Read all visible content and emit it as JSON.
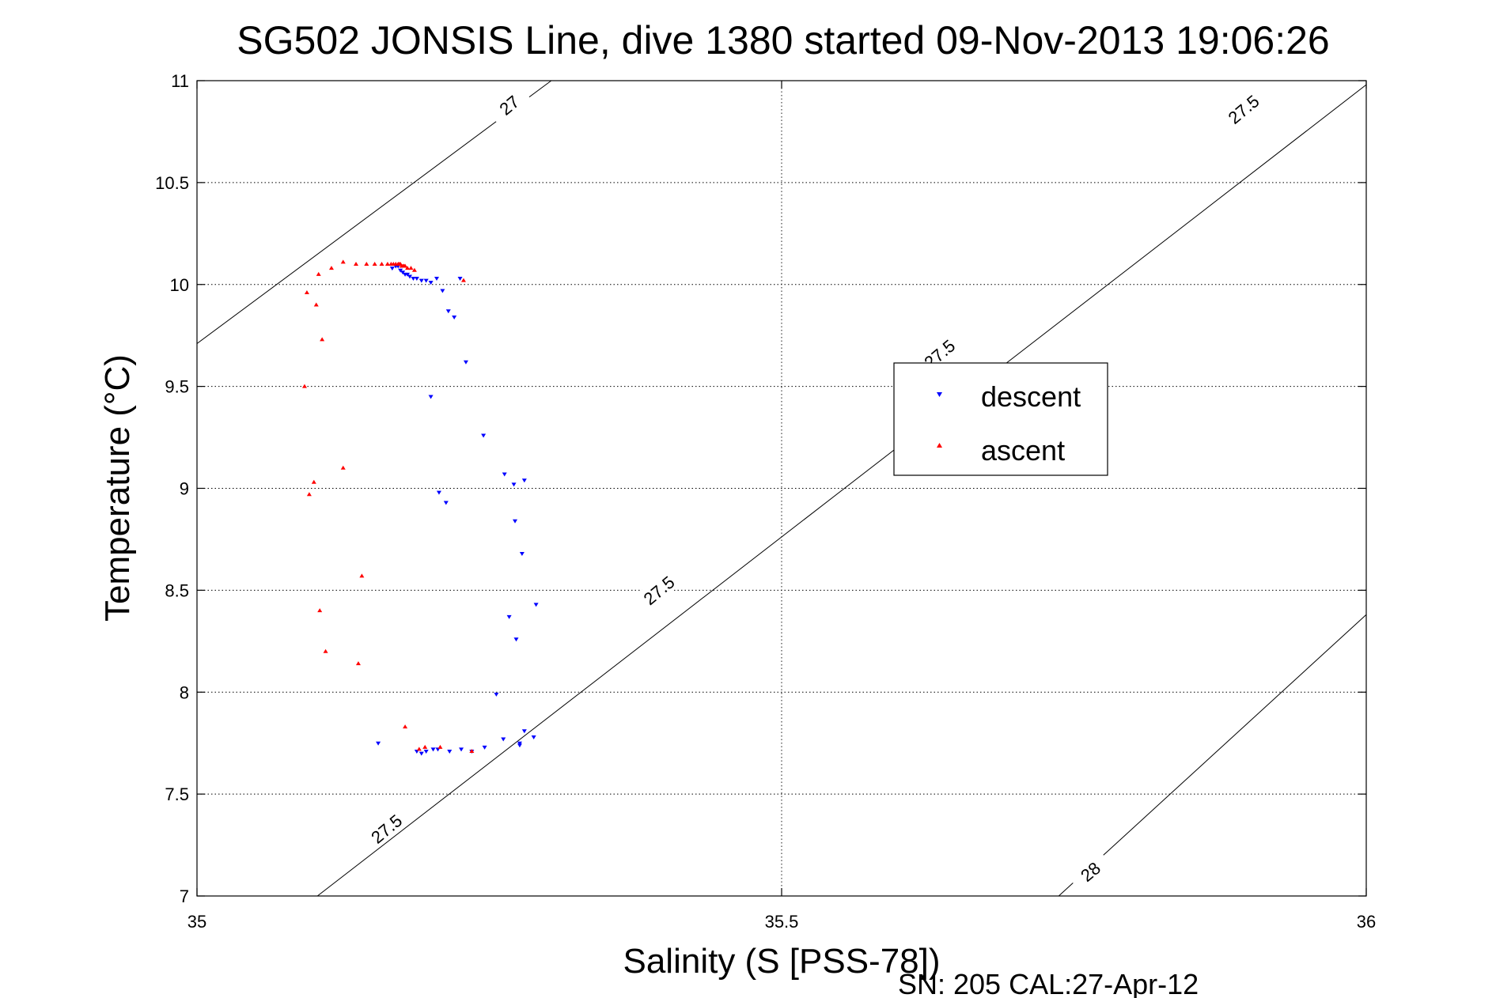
{
  "chart_data": {
    "type": "scatter",
    "title": "SG502 JONSIS Line, dive 1380 started 09-Nov-2013 19:06:26",
    "xlabel": "Salinity (S [PSS-78])",
    "ylabel": "Temperature (°C)",
    "footer": "SN: 205  CAL:27-Apr-12",
    "xlim": [
      35,
      36
    ],
    "ylim": [
      7,
      11
    ],
    "xticks": [
      "35",
      "35.5",
      "36"
    ],
    "yticks": [
      "7",
      "7.5",
      "8",
      "8.5",
      "9",
      "9.5",
      "10",
      "10.5",
      "11"
    ],
    "grid": true,
    "legend_placement": "center-right",
    "series": [
      {
        "name": "descent",
        "color": "#0000ff",
        "marker": "triangle-down",
        "x": [
          35.167,
          35.17,
          35.172,
          35.174,
          35.176,
          35.178,
          35.18,
          35.182,
          35.185,
          35.188,
          35.192,
          35.196,
          35.2,
          35.205,
          35.21,
          35.215,
          35.22,
          35.225,
          35.23,
          35.2,
          35.207,
          35.213,
          35.245,
          35.263,
          35.271,
          35.28,
          35.272,
          35.278,
          35.267,
          35.273,
          35.256,
          35.276,
          35.28,
          35.276,
          35.262,
          35.246,
          35.235,
          35.226,
          35.216,
          35.206,
          35.202,
          35.196,
          35.192,
          35.188,
          35.155,
          35.29,
          35.288
        ],
        "y": [
          10.08,
          10.09,
          10.09,
          10.07,
          10.06,
          10.05,
          10.05,
          10.04,
          10.03,
          10.03,
          10.02,
          10.02,
          10.01,
          10.03,
          9.97,
          9.87,
          9.84,
          10.03,
          9.62,
          9.45,
          8.98,
          8.93,
          9.26,
          9.07,
          9.02,
          9.04,
          8.84,
          8.68,
          8.37,
          8.26,
          7.99,
          7.75,
          7.81,
          7.74,
          7.77,
          7.73,
          7.71,
          7.72,
          7.71,
          7.72,
          7.72,
          7.71,
          7.7,
          7.71,
          7.75,
          8.43,
          7.78
        ]
      },
      {
        "name": "ascent",
        "color": "#ff0000",
        "marker": "triangle-up",
        "x": [
          35.136,
          35.145,
          35.152,
          35.158,
          35.163,
          35.166,
          35.168,
          35.17,
          35.172,
          35.173,
          35.174,
          35.175,
          35.176,
          35.177,
          35.178,
          35.18,
          35.183,
          35.186,
          35.125,
          35.115,
          35.104,
          35.094,
          35.102,
          35.107,
          35.092,
          35.096,
          35.125,
          35.1,
          35.141,
          35.105,
          35.11,
          35.138,
          35.178,
          35.195,
          35.19,
          35.208,
          35.235,
          35.228
        ],
        "y": [
          10.1,
          10.1,
          10.1,
          10.1,
          10.1,
          10.1,
          10.1,
          10.1,
          10.1,
          10.1,
          10.1,
          10.09,
          10.09,
          10.09,
          10.09,
          10.08,
          10.08,
          10.07,
          10.11,
          10.08,
          10.05,
          9.96,
          9.9,
          9.73,
          9.5,
          8.97,
          9.1,
          9.03,
          8.57,
          8.4,
          8.2,
          8.14,
          7.83,
          7.73,
          7.72,
          7.73,
          7.71,
          10.02
        ]
      }
    ]
  },
  "contours": [
    {
      "label": "27",
      "x": [
        35.0,
        35.303
      ],
      "y": [
        9.71,
        11.0
      ]
    },
    {
      "label": "27.5",
      "x": [
        35.103,
        36.0
      ],
      "y": [
        7.0,
        10.98
      ]
    },
    {
      "label": "28",
      "x": [
        35.737,
        36.0
      ],
      "y": [
        7.0,
        8.38
      ]
    }
  ],
  "contour_labels": [
    {
      "text": "27",
      "x": 35.267,
      "y": 10.88
    },
    {
      "text": "27.5",
      "x": 35.895,
      "y": 10.86
    },
    {
      "text": "27.5",
      "x": 35.635,
      "y": 9.66
    },
    {
      "text": "27.5",
      "x": 35.395,
      "y": 8.5
    },
    {
      "text": "27.5",
      "x": 35.162,
      "y": 7.33
    },
    {
      "text": "28",
      "x": 35.764,
      "y": 7.12
    }
  ]
}
